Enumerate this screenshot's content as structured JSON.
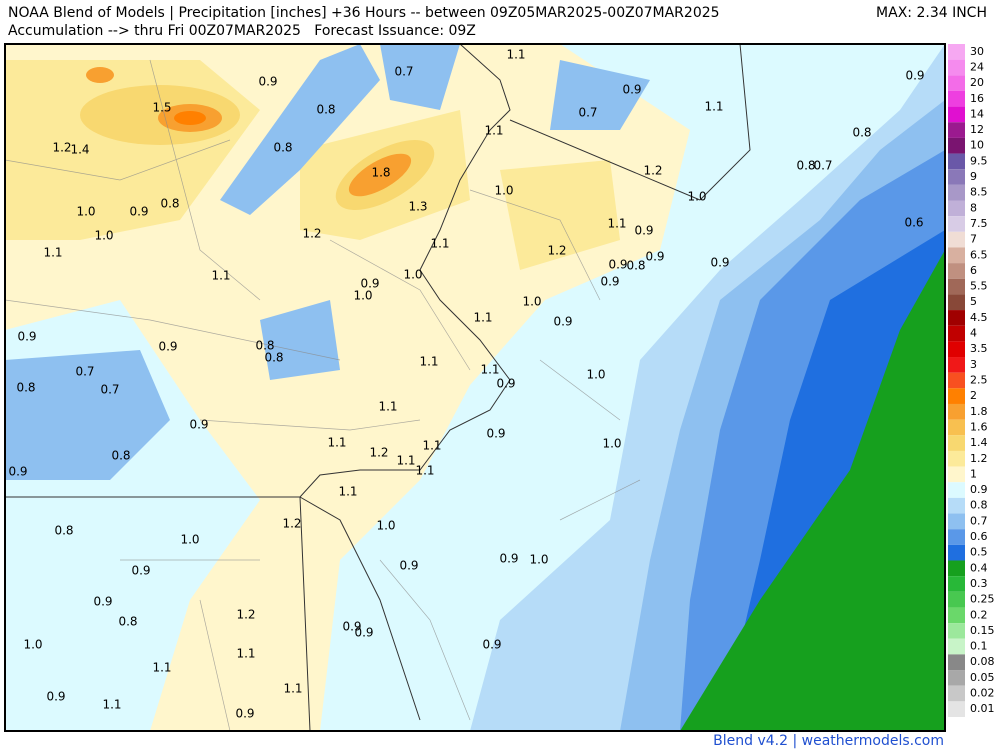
{
  "header": {
    "line1": "NOAA Blend of Models | Precipitation [inches] +36 Hours -- between 09Z05MAR2025-00Z07MAR2025",
    "line2": "Accumulation --> thru Fri 00Z07MAR2025   Forecast Issuance: 09Z",
    "max": "MAX: 2.34 INCH"
  },
  "labels": [
    "0.9",
    "0.7",
    "1.1",
    "0.9",
    "1.5",
    "0.8",
    "0.9",
    "0.7",
    "1.1",
    "1.2",
    "1.4",
    "0.8",
    "1.1",
    "0.8",
    "1.8",
    "1.2",
    "0.8",
    "0.7",
    "0.8",
    "1.0",
    "0.9",
    "1.0",
    "1.3",
    "1.0",
    "0.6",
    "1.0",
    "1.2",
    "1.1",
    "1.1",
    "0.9",
    "1.1",
    "1.2",
    "0.9",
    "0.8",
    "0.9",
    "0.9",
    "1.1",
    "1.0",
    "0.9",
    "0.9",
    "1.0",
    "1.0",
    "1.1",
    "0.9",
    "0.9",
    "0.9",
    "0.8",
    "0.8",
    "1.1",
    "1.1",
    "0.7",
    "0.9",
    "1.0",
    "0.8",
    "0.7",
    "1.1",
    "0.9",
    "0.9",
    "1.1",
    "1.2",
    "1.1",
    "1.0",
    "0.8",
    "1.1",
    "1.1",
    "0.9",
    "1.1",
    "0.8",
    "1.2",
    "1.0",
    "1.0",
    "0.9",
    "1.0",
    "0.9",
    "0.9",
    "0.9",
    "1.2",
    "0.8",
    "0.9",
    "0.9",
    "1.0",
    "0.9",
    "1.1",
    "1.1",
    "1.1",
    "0.9",
    "1.1",
    "0.9"
  ],
  "legend": [
    {
      "label": "30",
      "color": "#f6a8f2"
    },
    {
      "label": "24",
      "color": "#f58bee"
    },
    {
      "label": "20",
      "color": "#f36ce8"
    },
    {
      "label": "16",
      "color": "#ee3fe0"
    },
    {
      "label": "14",
      "color": "#e010d0"
    },
    {
      "label": "12",
      "color": "#9b1a8f"
    },
    {
      "label": "10",
      "color": "#7a1470"
    },
    {
      "label": "9.5",
      "color": "#6a58a8"
    },
    {
      "label": "9",
      "color": "#8a78b8"
    },
    {
      "label": "8.5",
      "color": "#a898c8"
    },
    {
      "label": "8",
      "color": "#c0b0d8"
    },
    {
      "label": "7.5",
      "color": "#d8cce6"
    },
    {
      "label": "7",
      "color": "#f0ddd5"
    },
    {
      "label": "6.5",
      "color": "#d8b0a0"
    },
    {
      "label": "6",
      "color": "#c09080"
    },
    {
      "label": "5.5",
      "color": "#a06858"
    },
    {
      "label": "5",
      "color": "#884838"
    },
    {
      "label": "4.5",
      "color": "#a00000"
    },
    {
      "label": "4",
      "color": "#c00000"
    },
    {
      "label": "3.5",
      "color": "#e00000"
    },
    {
      "label": "3",
      "color": "#f01818"
    },
    {
      "label": "2.5",
      "color": "#f85020"
    },
    {
      "label": "2",
      "color": "#ff8000"
    },
    {
      "label": "1.8",
      "color": "#f8a030"
    },
    {
      "label": "1.6",
      "color": "#f8c050"
    },
    {
      "label": "1.4",
      "color": "#f8d870"
    },
    {
      "label": "1.2",
      "color": "#fcea9a"
    },
    {
      "label": "1",
      "color": "#fff6cc"
    },
    {
      "label": "0.9",
      "color": "#dcfaff"
    },
    {
      "label": "0.8",
      "color": "#b6dcf8"
    },
    {
      "label": "0.7",
      "color": "#8ec0f0"
    },
    {
      "label": "0.6",
      "color": "#5a98e8"
    },
    {
      "label": "0.5",
      "color": "#1f6fe0"
    },
    {
      "label": "0.4",
      "color": "#16a01e"
    },
    {
      "label": "0.3",
      "color": "#28b838"
    },
    {
      "label": "0.25",
      "color": "#48c850"
    },
    {
      "label": "0.2",
      "color": "#6ad86a"
    },
    {
      "label": "0.15",
      "color": "#9ce89c"
    },
    {
      "label": "0.1",
      "color": "#c8f4c8"
    },
    {
      "label": "0.08",
      "color": "#888888"
    },
    {
      "label": "0.05",
      "color": "#a8a8a8"
    },
    {
      "label": "0.02",
      "color": "#c8c8c8"
    },
    {
      "label": "0.01",
      "color": "#e4e4e4"
    }
  ],
  "footer": "Blend v4.2 | weathermodels.com"
}
